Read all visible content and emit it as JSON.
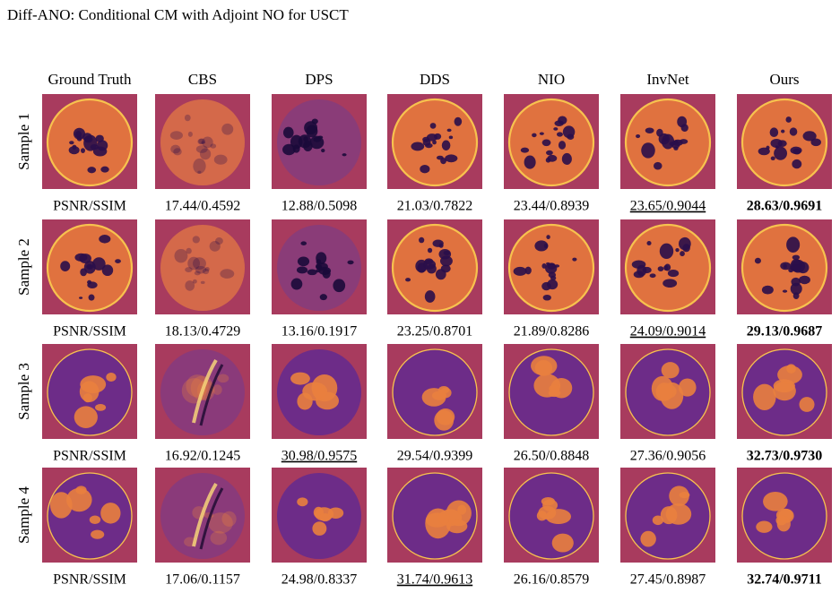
{
  "header": {
    "title": "Diff-ANO: Conditional CM with Adjoint NO for USCT"
  },
  "columns": [
    "Ground Truth",
    "CBS",
    "DPS",
    "DDS",
    "NIO",
    "InvNet",
    "Ours"
  ],
  "rows": [
    {
      "label": "Sample 1",
      "metric": "PSNR/SSIM",
      "scores": [
        {
          "text": "17.44/0.4592"
        },
        {
          "text": "12.88/0.5098"
        },
        {
          "text": "21.03/0.7822"
        },
        {
          "text": "23.44/0.8939"
        },
        {
          "text": "23.65/0.9044",
          "style": "underline"
        },
        {
          "text": "28.63/0.9691",
          "style": "bold"
        }
      ]
    },
    {
      "label": "Sample 2",
      "metric": "PSNR/SSIM",
      "scores": [
        {
          "text": "18.13/0.4729"
        },
        {
          "text": "13.16/0.1917"
        },
        {
          "text": "23.25/0.8701"
        },
        {
          "text": "21.89/0.8286"
        },
        {
          "text": "24.09/0.9014",
          "style": "underline"
        },
        {
          "text": "29.13/0.9687",
          "style": "bold"
        }
      ]
    },
    {
      "label": "Sample 3",
      "metric": "PSNR/SSIM",
      "scores": [
        {
          "text": "16.92/0.1245"
        },
        {
          "text": "30.98/0.9575",
          "style": "underline"
        },
        {
          "text": "29.54/0.9399"
        },
        {
          "text": "26.50/0.8848"
        },
        {
          "text": "27.36/0.9056"
        },
        {
          "text": "32.73/0.9730",
          "style": "bold"
        }
      ]
    },
    {
      "label": "Sample 4",
      "metric": "PSNR/SSIM",
      "scores": [
        {
          "text": "17.06/0.1157"
        },
        {
          "text": "24.98/0.8337"
        },
        {
          "text": "31.74/0.9613",
          "style": "underline"
        },
        {
          "text": "26.16/0.8579"
        },
        {
          "text": "27.45/0.8987"
        },
        {
          "text": "32.74/0.9711",
          "style": "bold"
        }
      ]
    }
  ]
}
